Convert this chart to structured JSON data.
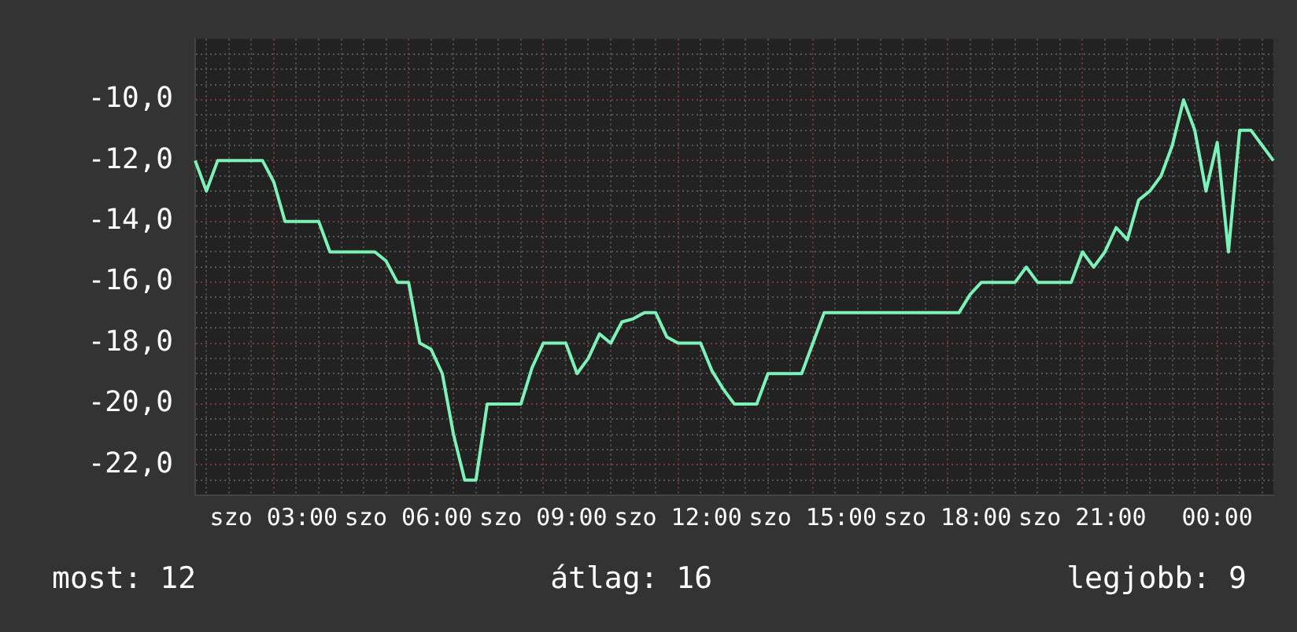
{
  "chart_data": {
    "type": "line",
    "annotations": [
      "most: 12",
      "átlag: 16",
      "legjobb: 9"
    ],
    "categories": [
      null,
      null,
      null,
      null,
      null,
      null,
      null,
      "szo 03:00",
      null,
      null,
      null,
      null,
      null,
      null,
      null,
      null,
      null,
      null,
      null,
      "szo 06:00",
      null,
      null,
      null,
      null,
      null,
      null,
      null,
      null,
      null,
      null,
      null,
      "szo 09:00",
      null,
      null,
      null,
      null,
      null,
      null,
      null,
      null,
      null,
      null,
      null,
      "szo 12:00",
      null,
      null,
      null,
      null,
      null,
      null,
      null,
      null,
      null,
      null,
      null,
      "szo 15:00",
      null,
      null,
      null,
      null,
      null,
      null,
      null,
      null,
      null,
      null,
      null,
      "szo 18:00",
      null,
      null,
      null,
      null,
      null,
      null,
      null,
      null,
      null,
      null,
      null,
      "szo 21:00",
      null,
      null,
      null,
      null,
      null,
      null,
      null,
      null,
      null,
      null,
      null,
      "00:00",
      null,
      null,
      null,
      null,
      null
    ],
    "series": [
      {
        "color": "#7df2b8",
        "values": [
          -12,
          -13,
          -12,
          -12,
          -12,
          -12,
          -12,
          -12.7,
          -14,
          -14,
          -14,
          -14,
          -15,
          -15,
          -15,
          -15,
          -15,
          -15.3,
          -16,
          -16,
          -18,
          -18.2,
          -19,
          -21,
          -22.5,
          -22.5,
          -20,
          -20,
          -20,
          -20,
          -18.8,
          -18,
          -18,
          -18,
          -19,
          -18.5,
          -17.7,
          -18,
          -17.3,
          -17.2,
          -17,
          -17,
          -17.8,
          -18,
          -18,
          -18,
          -18.9,
          -19.5,
          -20,
          -20,
          -20,
          -19,
          -19,
          -19,
          -19,
          -18,
          -17,
          -17,
          -17,
          -17,
          -17,
          -17,
          -17,
          -17,
          -17,
          -17,
          -17,
          -17,
          -17,
          -16.4,
          -16,
          -16,
          -16,
          -16,
          -15.5,
          -16,
          -16,
          -16,
          -16,
          -15,
          -15.5,
          -15,
          -14.2,
          -14.6,
          -13.3,
          -13,
          -12.5,
          -11.5,
          -10,
          -11,
          -13,
          -11.4,
          -15,
          -11,
          -11,
          -11.5,
          -12
        ]
      }
    ],
    "ylim": [
      -23,
      -8
    ],
    "yticks": [
      {
        "value": -22.5,
        "label": null
      },
      {
        "value": -22,
        "label": "-22,0"
      },
      {
        "value": -21.5,
        "label": null
      },
      {
        "value": -21,
        "label": null
      },
      {
        "value": -20.5,
        "label": null
      },
      {
        "value": -20,
        "label": "-20,0"
      },
      {
        "value": -19.5,
        "label": null
      },
      {
        "value": -19,
        "label": null
      },
      {
        "value": -18.5,
        "label": null
      },
      {
        "value": -18,
        "label": "-18,0"
      },
      {
        "value": -17.5,
        "label": null
      },
      {
        "value": -17,
        "label": null
      },
      {
        "value": -16.5,
        "label": null
      },
      {
        "value": -16,
        "label": "-16,0"
      },
      {
        "value": -15.5,
        "label": null
      },
      {
        "value": -15,
        "label": null
      },
      {
        "value": -14.5,
        "label": null
      },
      {
        "value": -14,
        "label": "-14,0"
      },
      {
        "value": -13.5,
        "label": null
      },
      {
        "value": -13,
        "label": null
      },
      {
        "value": -12.5,
        "label": null
      },
      {
        "value": -12,
        "label": "-12,0"
      },
      {
        "value": -11.5,
        "label": null
      },
      {
        "value": -11,
        "label": null
      },
      {
        "value": -10.5,
        "label": null
      },
      {
        "value": -10,
        "label": "-10,0"
      },
      {
        "value": -9.5,
        "label": null
      },
      {
        "value": -9,
        "label": null
      },
      {
        "value": -8.5,
        "label": null
      }
    ],
    "grid": true,
    "legend": false,
    "marker": "none",
    "line_style": "solid"
  }
}
